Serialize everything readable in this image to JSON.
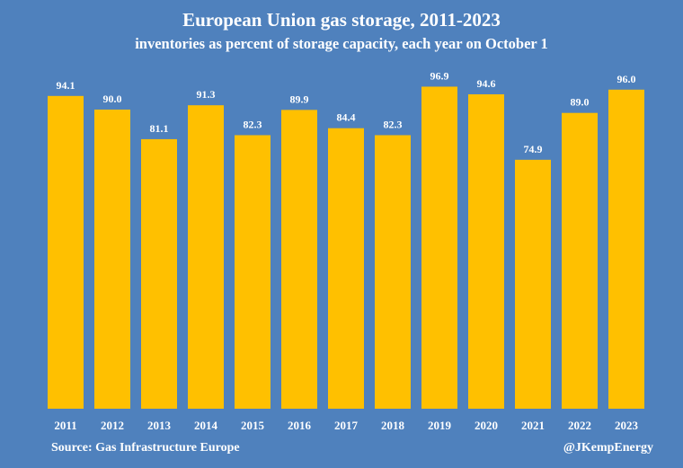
{
  "title": "European Union gas storage, 2011-2023",
  "subtitle": "inventories as percent of storage capacity, each year on October 1",
  "source": "Source: Gas Infrastructure Europe",
  "credit": "@JKempEnergy",
  "colors": {
    "background": "#4f81bd",
    "bar": "#ffc000",
    "text": "#ffffff"
  },
  "chart_data": {
    "type": "bar",
    "title": "European Union gas storage, 2011-2023",
    "subtitle": "inventories as percent of storage capacity, each year on October 1",
    "categories": [
      "2011",
      "2012",
      "2013",
      "2014",
      "2015",
      "2016",
      "2017",
      "2018",
      "2019",
      "2020",
      "2021",
      "2022",
      "2023"
    ],
    "values": [
      94.1,
      90.0,
      81.1,
      91.3,
      82.3,
      89.9,
      84.4,
      82.3,
      96.9,
      94.6,
      74.9,
      89.0,
      96.0
    ],
    "value_labels": [
      "94.1",
      "90.0",
      "81.1",
      "91.3",
      "82.3",
      "89.9",
      "84.4",
      "82.3",
      "96.9",
      "94.6",
      "74.9",
      "89.0",
      "96.0"
    ],
    "xlabel": "",
    "ylabel": "",
    "ylim": [
      0,
      100
    ],
    "grid": false,
    "legend": "none"
  }
}
